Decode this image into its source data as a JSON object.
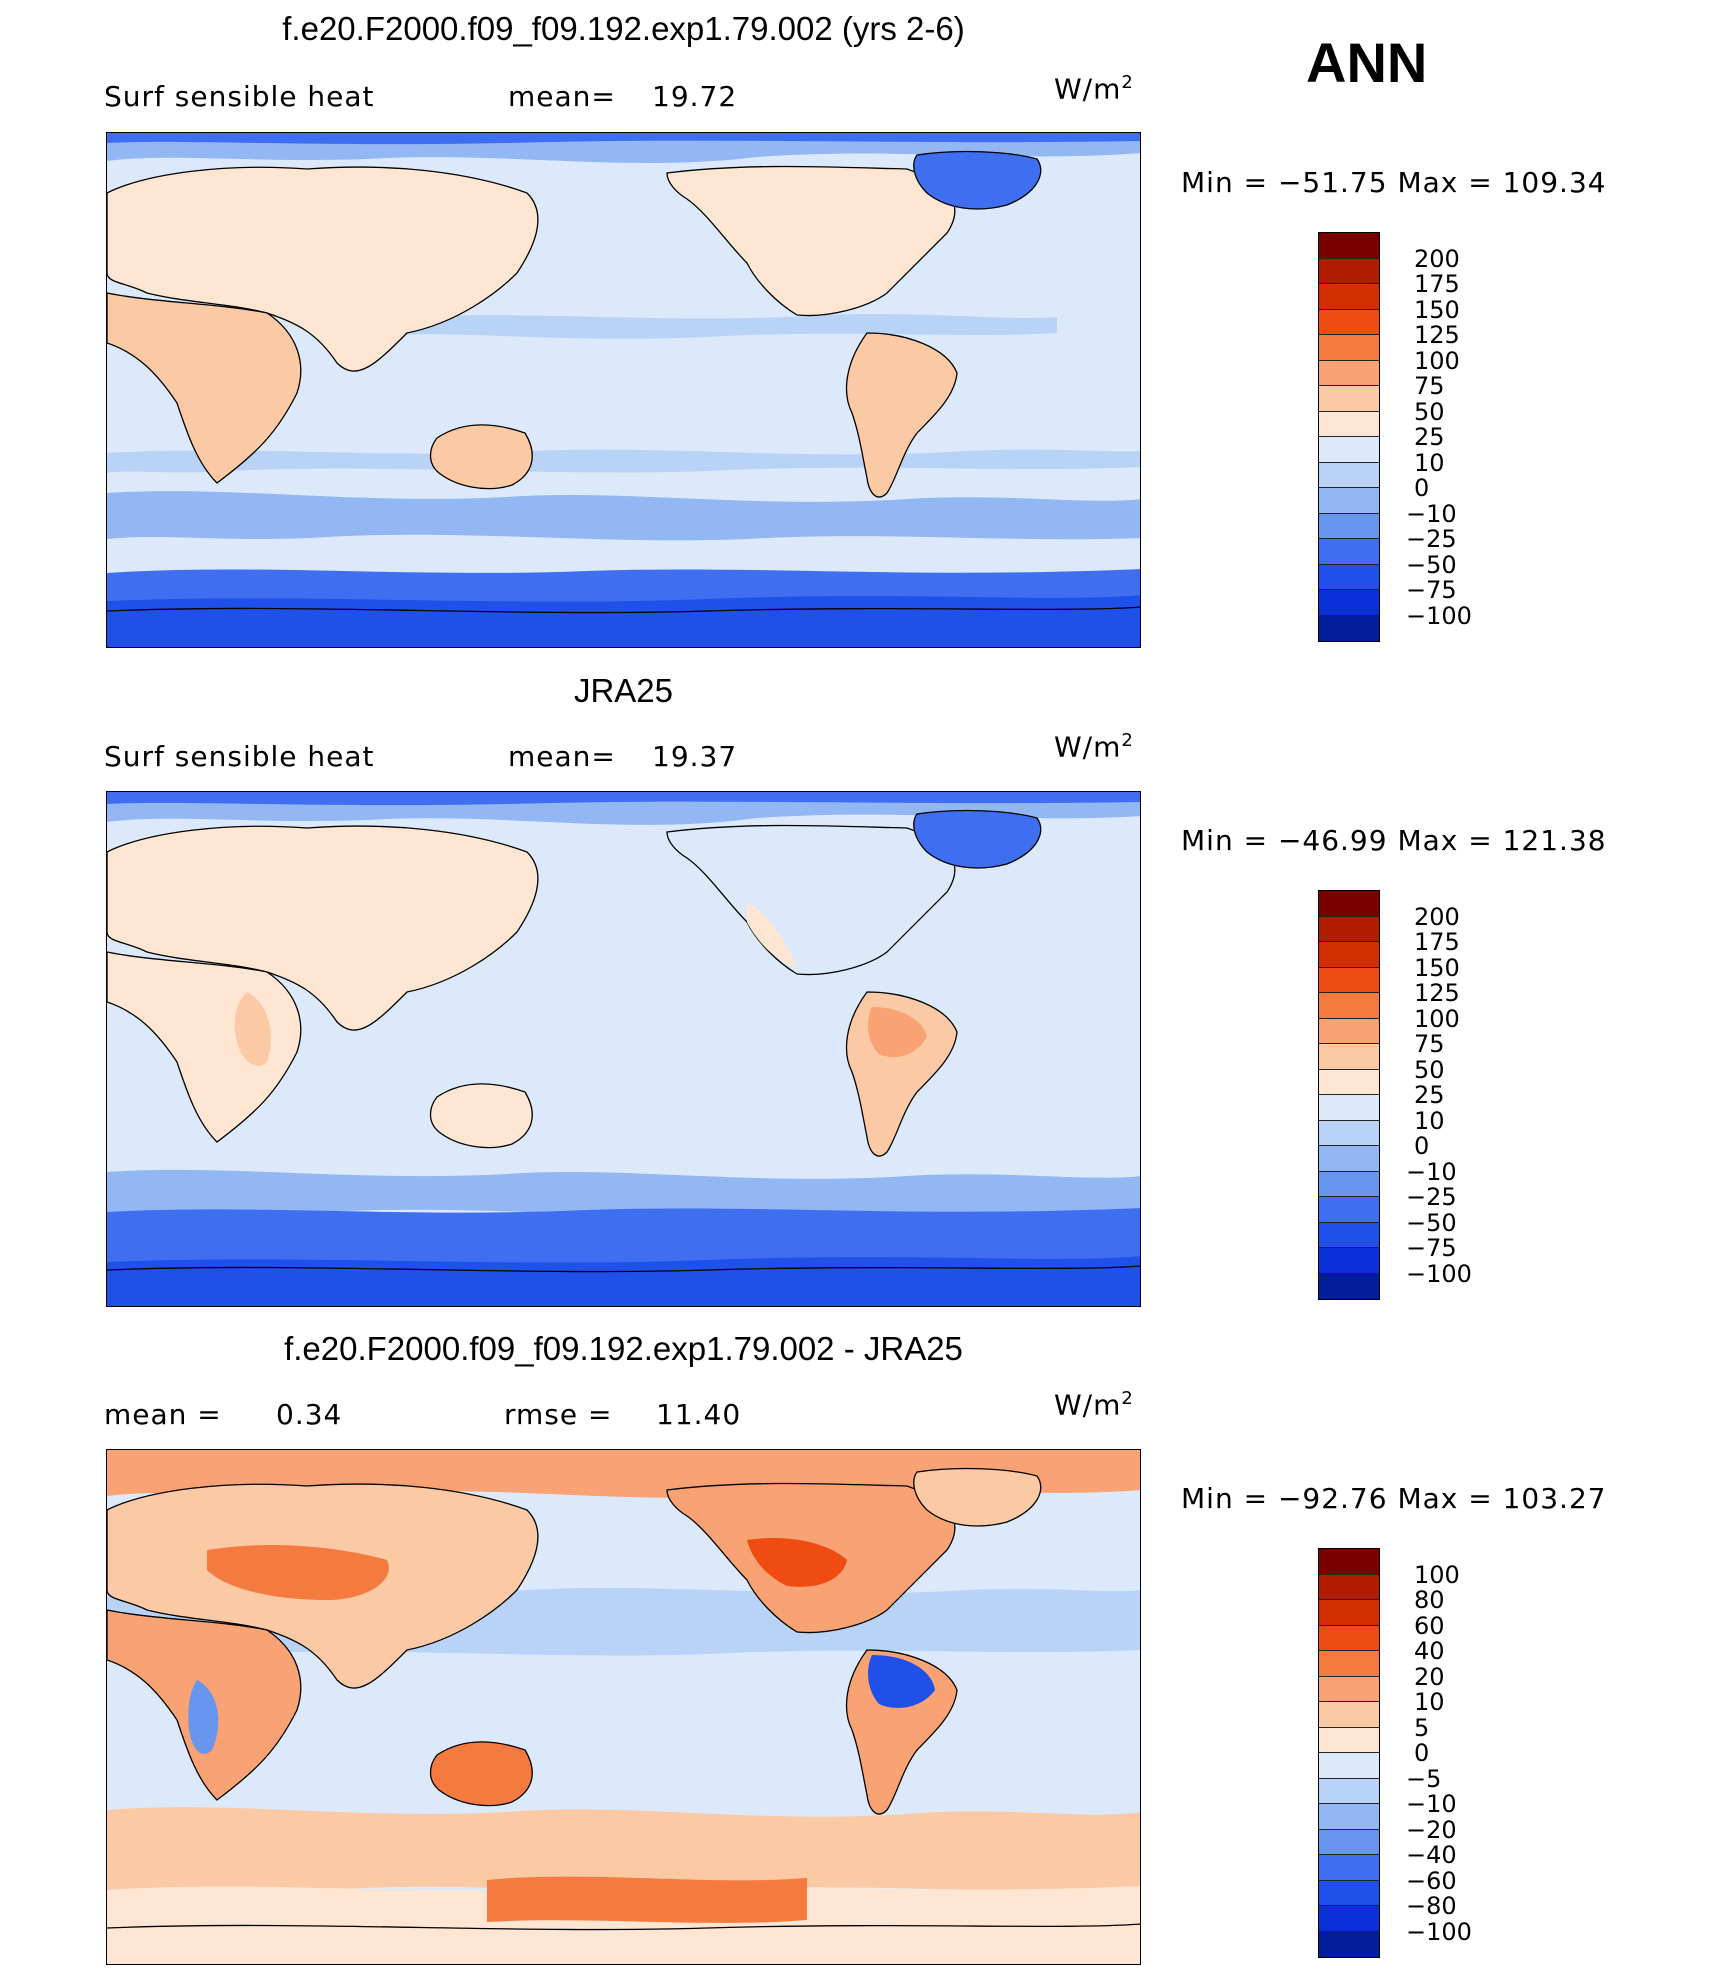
{
  "header": {
    "season": "ANN"
  },
  "panels": [
    {
      "title": "f.e20.F2000.f09_f09.192.exp1.79.002 (yrs 2-6)",
      "left_label": "Surf  sensible  heat",
      "stat_label": "mean=",
      "stat_value": "19.72",
      "units": "W/m",
      "units_sup": "2",
      "min_max": "Min  =  −51.75  Max  =  109.34",
      "palette": "abs"
    },
    {
      "title": "JRA25",
      "left_label": "Surf  sensible  heat",
      "stat_label": "mean=",
      "stat_value": "19.37",
      "units": "W/m",
      "units_sup": "2",
      "min_max": "Min  =  −46.99  Max  =  121.38",
      "palette": "abs"
    },
    {
      "title": "f.e20.F2000.f09_f09.192.exp1.79.002 - JRA25",
      "left_label": "mean  =",
      "left_value": "0.34",
      "stat_label": "rmse  =",
      "stat_value": "11.40",
      "units": "W/m",
      "units_sup": "2",
      "min_max": "Min  =  −92.76  Max  =  103.27",
      "palette": "diff"
    }
  ],
  "colorbars": {
    "abs": {
      "labels": [
        "200",
        "175",
        "150",
        "125",
        "100",
        "75",
        "50",
        "25",
        "10",
        "0",
        "−10",
        "−25",
        "−50",
        "−75",
        "−100"
      ],
      "colors": [
        "#7a0000",
        "#b01c00",
        "#d42e00",
        "#f04b10",
        "#f57a3f",
        "#f9a273",
        "#fcc9a5",
        "#fee6d2",
        "#dbe9fa",
        "#b9d3f7",
        "#92b7f2",
        "#6896ee",
        "#3f6ff0",
        "#2050ea",
        "#0a2fd8",
        "#001e9a"
      ]
    },
    "diff": {
      "labels": [
        "100",
        "80",
        "60",
        "40",
        "20",
        "10",
        "5",
        "0",
        "−5",
        "−10",
        "−20",
        "−40",
        "−60",
        "−80",
        "−100"
      ],
      "colors": [
        "#7a0000",
        "#b01c00",
        "#d42e00",
        "#f04b10",
        "#f57a3f",
        "#f9a273",
        "#fcc9a5",
        "#fee6d2",
        "#dbe9fa",
        "#b9d3f7",
        "#92b7f2",
        "#6896ee",
        "#3f6ff0",
        "#2050ea",
        "#0a2fd8",
        "#001e9a"
      ]
    }
  },
  "chart_data": [
    {
      "type": "heatmap",
      "title": "f.e20.F2000.f09_f09.192.exp1.79.002 (yrs 2-6)",
      "variable": "Surf  sensible  heat",
      "units": "W/m2",
      "mean": 19.72,
      "min": -51.75,
      "max": 109.34,
      "levels": [
        -100,
        -75,
        -50,
        -25,
        -10,
        0,
        10,
        25,
        50,
        75,
        100,
        125,
        150,
        175,
        200
      ],
      "projection": "cylindrical equidistant, Pacific-centred"
    },
    {
      "type": "heatmap",
      "title": "JRA25",
      "variable": "Surf  sensible  heat",
      "units": "W/m2",
      "mean": 19.37,
      "min": -46.99,
      "max": 121.38,
      "levels": [
        -100,
        -75,
        -50,
        -25,
        -10,
        0,
        10,
        25,
        50,
        75,
        100,
        125,
        150,
        175,
        200
      ],
      "projection": "cylindrical equidistant, Pacific-centred"
    },
    {
      "type": "heatmap",
      "title": "f.e20.F2000.f09_f09.192.exp1.79.002 - JRA25",
      "units": "W/m2",
      "mean": 0.34,
      "rmse": 11.4,
      "min": -92.76,
      "max": 103.27,
      "levels": [
        -100,
        -80,
        -60,
        -40,
        -20,
        -10,
        -5,
        0,
        5,
        10,
        20,
        40,
        60,
        80,
        100
      ],
      "projection": "cylindrical equidistant, Pacific-centred"
    }
  ]
}
